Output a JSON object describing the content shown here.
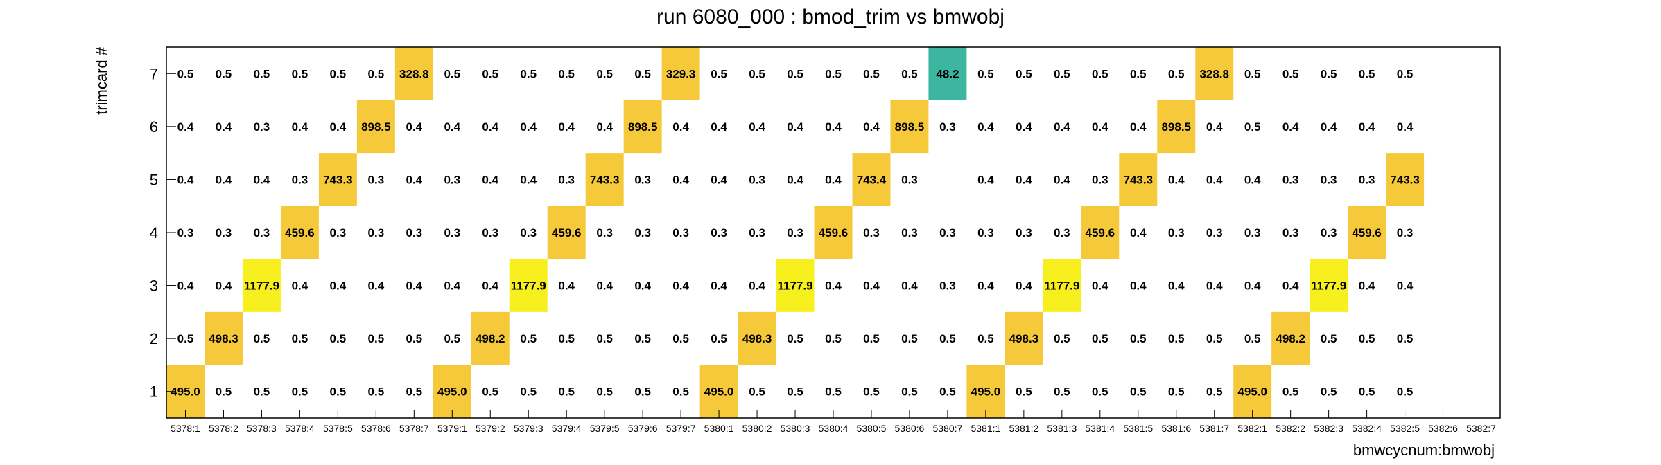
{
  "chart_data": {
    "type": "heatmap",
    "title": "run 6080_000 : bmod_trim vs bmwobj",
    "xlabel": "bmwcycnum:bmwobj",
    "ylabel": "trimcard #",
    "x_categories": [
      "5378:1",
      "5378:2",
      "5378:3",
      "5378:4",
      "5378:5",
      "5378:6",
      "5378:7",
      "5379:1",
      "5379:2",
      "5379:3",
      "5379:4",
      "5379:5",
      "5379:6",
      "5379:7",
      "5380:1",
      "5380:2",
      "5380:3",
      "5380:4",
      "5380:5",
      "5380:6",
      "5380:7",
      "5381:1",
      "5381:2",
      "5381:3",
      "5381:4",
      "5381:5",
      "5381:6",
      "5381:7",
      "5382:1",
      "5382:2",
      "5382:3",
      "5382:4",
      "5382:5",
      "5382:6",
      "5382:7"
    ],
    "y_categories": [
      "1",
      "2",
      "3",
      "4",
      "5",
      "6",
      "7"
    ],
    "colors": {
      "low": "#3cb6a0",
      "mid": "#f6c93a",
      "high": "#f8f01e"
    },
    "rows": [
      {
        "y": "1",
        "values": [
          495.0,
          0.5,
          0.5,
          0.5,
          0.5,
          0.5,
          0.5,
          495.0,
          0.5,
          0.5,
          0.5,
          0.5,
          0.5,
          0.5,
          495.0,
          0.5,
          0.5,
          0.5,
          0.5,
          0.5,
          0.5,
          495.0,
          0.5,
          0.5,
          0.5,
          0.5,
          0.5,
          0.5,
          495.0,
          0.5,
          0.5,
          0.5,
          0.5,
          null,
          null
        ]
      },
      {
        "y": "2",
        "values": [
          0.5,
          498.3,
          0.5,
          0.5,
          0.5,
          0.5,
          0.5,
          0.5,
          498.2,
          0.5,
          0.5,
          0.5,
          0.5,
          0.5,
          0.5,
          498.3,
          0.5,
          0.5,
          0.5,
          0.5,
          0.5,
          0.5,
          498.3,
          0.5,
          0.5,
          0.5,
          0.5,
          0.5,
          0.5,
          498.2,
          0.5,
          0.5,
          0.5,
          null,
          null
        ]
      },
      {
        "y": "3",
        "values": [
          0.4,
          0.4,
          1177.9,
          0.4,
          0.4,
          0.4,
          0.4,
          0.4,
          0.4,
          1177.9,
          0.4,
          0.4,
          0.4,
          0.4,
          0.4,
          0.4,
          1177.9,
          0.4,
          0.4,
          0.4,
          0.3,
          0.4,
          0.4,
          1177.9,
          0.4,
          0.4,
          0.4,
          0.4,
          0.4,
          0.4,
          1177.9,
          0.4,
          0.4,
          null,
          null
        ]
      },
      {
        "y": "4",
        "values": [
          0.3,
          0.3,
          0.3,
          459.6,
          0.3,
          0.3,
          0.3,
          0.3,
          0.3,
          0.3,
          459.6,
          0.3,
          0.3,
          0.3,
          0.3,
          0.3,
          0.3,
          459.6,
          0.3,
          0.3,
          0.3,
          0.3,
          0.3,
          0.3,
          459.6,
          0.4,
          0.3,
          0.3,
          0.3,
          0.3,
          0.3,
          459.6,
          0.3,
          null,
          null
        ]
      },
      {
        "y": "5",
        "values": [
          0.4,
          0.4,
          0.4,
          0.3,
          743.3,
          0.3,
          0.4,
          0.3,
          0.4,
          0.4,
          0.3,
          743.3,
          0.3,
          0.4,
          0.4,
          0.3,
          0.4,
          0.4,
          743.4,
          0.3,
          null,
          0.4,
          0.4,
          0.4,
          0.3,
          743.3,
          0.4,
          0.4,
          0.4,
          0.3,
          0.3,
          0.3,
          743.3,
          null,
          null
        ]
      },
      {
        "y": "6",
        "values": [
          0.4,
          0.4,
          0.3,
          0.4,
          0.4,
          898.5,
          0.4,
          0.4,
          0.4,
          0.4,
          0.4,
          0.4,
          898.5,
          0.4,
          0.4,
          0.4,
          0.4,
          0.4,
          0.4,
          898.5,
          0.3,
          0.4,
          0.4,
          0.4,
          0.4,
          0.4,
          898.5,
          0.4,
          0.5,
          0.4,
          0.4,
          0.4,
          0.4,
          null,
          null
        ]
      },
      {
        "y": "7",
        "values": [
          0.5,
          0.5,
          0.5,
          0.5,
          0.5,
          0.5,
          328.8,
          0.5,
          0.5,
          0.5,
          0.5,
          0.5,
          0.5,
          329.3,
          0.5,
          0.5,
          0.5,
          0.5,
          0.5,
          0.5,
          48.2,
          0.5,
          0.5,
          0.5,
          0.5,
          0.5,
          0.5,
          328.8,
          0.5,
          0.5,
          0.5,
          0.5,
          0.5,
          null,
          null
        ]
      }
    ]
  }
}
